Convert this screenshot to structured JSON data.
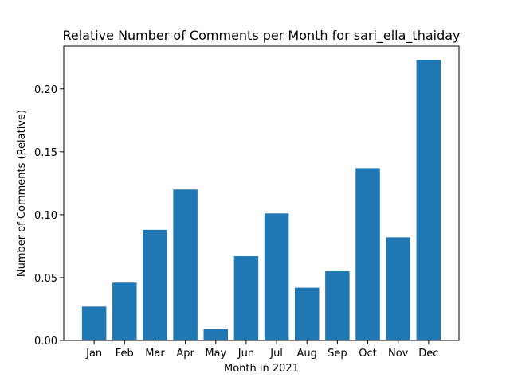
{
  "chart_data": {
    "type": "bar",
    "title": "Relative Number of Comments per Month for sari_ella_thaiday",
    "xlabel": "Month in 2021",
    "ylabel": "Number of Comments (Relative)",
    "categories": [
      "Jan",
      "Feb",
      "Mar",
      "Apr",
      "May",
      "Jun",
      "Jul",
      "Aug",
      "Sep",
      "Oct",
      "Nov",
      "Dec"
    ],
    "values": [
      0.027,
      0.046,
      0.088,
      0.12,
      0.009,
      0.067,
      0.101,
      0.042,
      0.055,
      0.137,
      0.082,
      0.223
    ],
    "ylim": [
      0,
      0.234
    ],
    "yticks": [
      "0.00",
      "0.05",
      "0.10",
      "0.15",
      "0.20"
    ],
    "grid": false,
    "bar_color": "#1f77b4"
  }
}
